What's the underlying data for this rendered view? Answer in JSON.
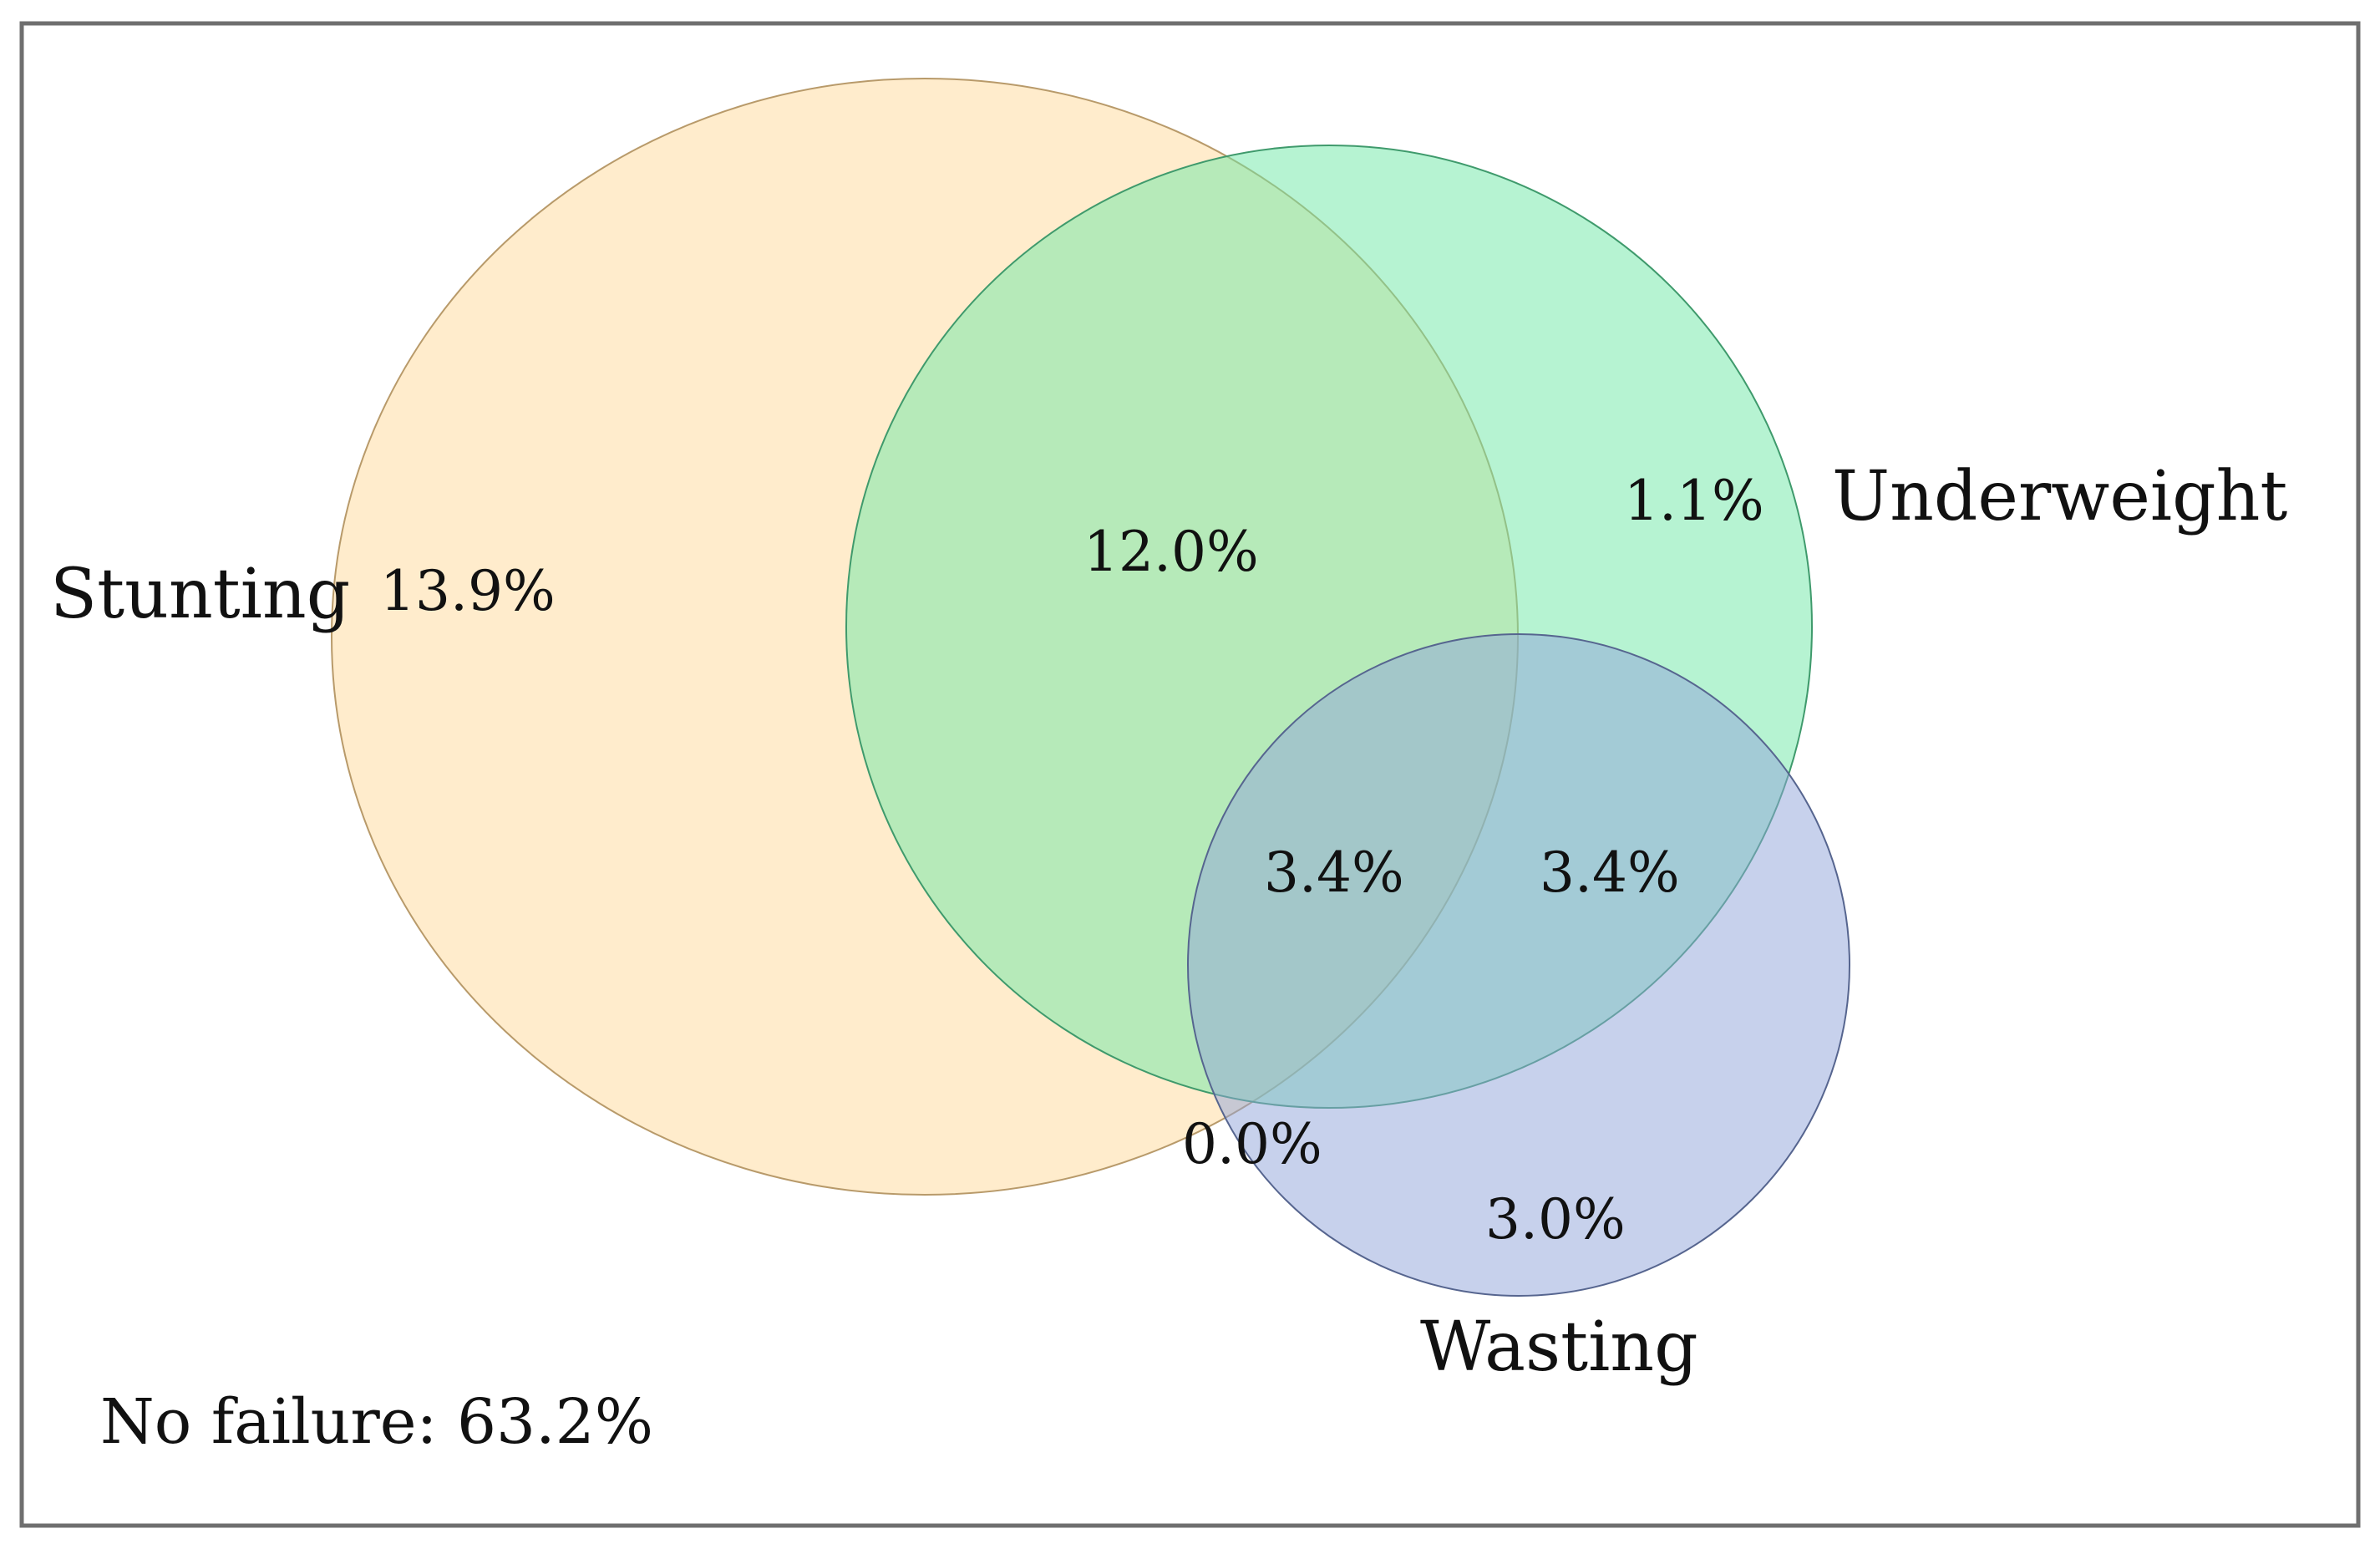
{
  "sets": [
    {
      "id": "stunting",
      "label": "Stunting",
      "fill": "#FFD999",
      "stroke": "#B89A6A"
    },
    {
      "id": "underweight",
      "label": "Underweight",
      "fill": "#6EE8A6",
      "stroke": "#3F9A6C"
    },
    {
      "id": "wasting",
      "label": "Wasting",
      "fill": "#8FA3D9",
      "stroke": "#56658F"
    }
  ],
  "regions": {
    "stunting_only": "13.9%",
    "stunting_underweight": "12.0%",
    "underweight_only": "1.1%",
    "all_three": "3.4%",
    "underweight_wasting": "3.4%",
    "stunting_wasting": "0.0%",
    "wasting_only": "3.0%"
  },
  "no_failure": "No failure: 63.2%",
  "colors": {
    "border": "#6F6F6F",
    "background": "#FFFFFF"
  }
}
